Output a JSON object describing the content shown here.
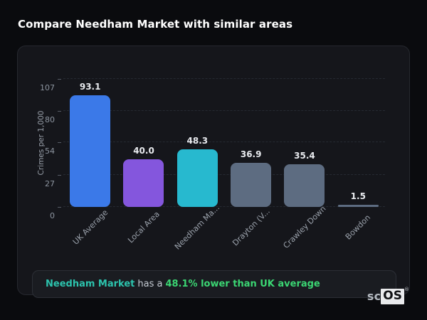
{
  "page": {
    "title": "Compare Needham Market with similar areas"
  },
  "chart_data": {
    "type": "bar",
    "title": "Compare Needham Market with similar areas",
    "xlabel": "",
    "ylabel": "Crimes per 1,000",
    "categories": [
      "UK Average",
      "Local Area",
      "Needham Ma...",
      "Drayton (V...",
      "Crawley Down",
      "Bowdon"
    ],
    "values": [
      93.1,
      40.0,
      48.3,
      36.9,
      35.4,
      1.5
    ],
    "value_labels": [
      "93.1",
      "40.0",
      "48.3",
      "36.9",
      "35.4",
      "1.5"
    ],
    "bar_colors": [
      "#3b79e8",
      "#8456dd",
      "#27b9cf",
      "#5d6c81",
      "#5d6c81",
      "#5d6c81"
    ],
    "yticks": [
      0,
      27,
      54,
      80,
      107
    ],
    "ylim": [
      0,
      107
    ],
    "grid": true,
    "legend_position": "none"
  },
  "summary": {
    "area_name": "Needham Market",
    "connector": "has a",
    "comparison": "48.1% lower than UK average",
    "area_color": "#2cc3ad",
    "comparison_color": "#3bd673"
  },
  "logo": {
    "prefix": "sc",
    "suffix": "OS",
    "registered": "®"
  }
}
